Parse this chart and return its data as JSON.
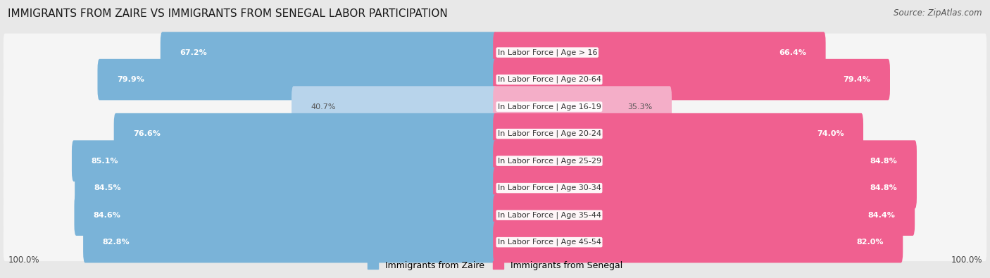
{
  "title": "IMMIGRANTS FROM ZAIRE VS IMMIGRANTS FROM SENEGAL LABOR PARTICIPATION",
  "source": "Source: ZipAtlas.com",
  "categories": [
    "In Labor Force | Age > 16",
    "In Labor Force | Age 20-64",
    "In Labor Force | Age 16-19",
    "In Labor Force | Age 20-24",
    "In Labor Force | Age 25-29",
    "In Labor Force | Age 30-34",
    "In Labor Force | Age 35-44",
    "In Labor Force | Age 45-54"
  ],
  "zaire_values": [
    67.2,
    79.9,
    40.7,
    76.6,
    85.1,
    84.5,
    84.6,
    82.8
  ],
  "senegal_values": [
    66.4,
    79.4,
    35.3,
    74.0,
    84.8,
    84.8,
    84.4,
    82.0
  ],
  "zaire_color": "#7ab3d8",
  "zaire_color_light": "#b8d4eb",
  "senegal_color": "#f06090",
  "senegal_color_light": "#f4aec8",
  "bg_color": "#e8e8e8",
  "row_bg": "#f5f5f5",
  "legend_zaire": "Immigrants from Zaire",
  "legend_senegal": "Immigrants from Senegal",
  "title_fontsize": 11,
  "source_fontsize": 8.5,
  "label_fontsize": 8,
  "value_fontsize": 8
}
